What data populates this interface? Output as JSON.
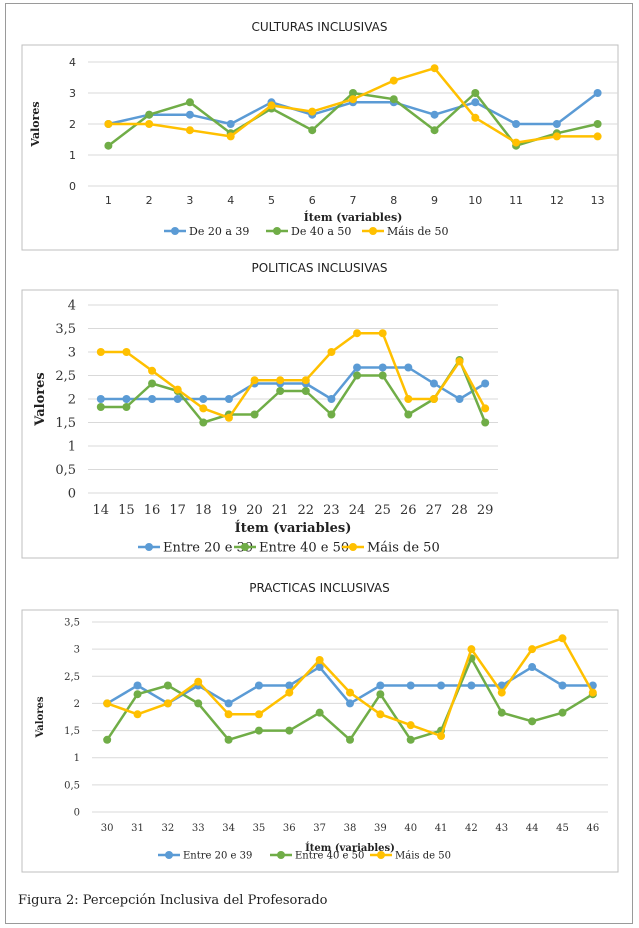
{
  "caption": "Figura 2: Percepción Inclusiva del Profesorado",
  "chart_data": [
    {
      "type": "line",
      "title": "CULTURAS INCLUSIVAS",
      "xlabel": "Ítem (variables)",
      "ylabel": "Valores",
      "x": [
        "1",
        "2",
        "3",
        "4",
        "5",
        "6",
        "7",
        "8",
        "9",
        "10",
        "11",
        "12",
        "13"
      ],
      "ylim": [
        0,
        4
      ],
      "yticks": [
        "0",
        "1",
        "2",
        "3",
        "4"
      ],
      "grid": true,
      "legend": "bottom",
      "series": [
        {
          "name": "De 20 a 39",
          "color": "#5b9bd5",
          "values": [
            2.0,
            2.3,
            2.3,
            2.0,
            2.7,
            2.3,
            2.7,
            2.7,
            2.3,
            2.7,
            2.0,
            2.0,
            3.0
          ]
        },
        {
          "name": "De 40 a 50",
          "color": "#70ad47",
          "values": [
            1.3,
            2.3,
            2.7,
            1.7,
            2.5,
            1.8,
            3.0,
            2.8,
            1.8,
            3.0,
            1.3,
            1.7,
            2.0
          ]
        },
        {
          "name": "Máis de 50",
          "color": "#ffc000",
          "values": [
            2.0,
            2.0,
            1.8,
            1.6,
            2.6,
            2.4,
            2.8,
            3.4,
            3.8,
            2.2,
            1.4,
            1.6,
            1.6
          ]
        }
      ]
    },
    {
      "type": "line",
      "title": "POLITICAS INCLUSIVAS",
      "xlabel": "Ítem (variables)",
      "ylabel": "Valores",
      "x": [
        "14",
        "15",
        "16",
        "17",
        "18",
        "19",
        "20",
        "21",
        "22",
        "23",
        "24",
        "25",
        "26",
        "27",
        "28",
        "29"
      ],
      "ylim": [
        0,
        4
      ],
      "yticks": [
        "0",
        "0,5",
        "1",
        "1,5",
        "2",
        "2,5",
        "3",
        "3,5",
        "4"
      ],
      "grid": true,
      "legend": "bottom",
      "series": [
        {
          "name": "Entre 20 e 39",
          "color": "#5b9bd5",
          "values": [
            2.0,
            2.0,
            2.0,
            2.0,
            2.0,
            2.0,
            2.33,
            2.33,
            2.33,
            2.0,
            2.67,
            2.67,
            2.67,
            2.33,
            2.0,
            2.33
          ]
        },
        {
          "name": "Entre 40 e 50",
          "color": "#70ad47",
          "values": [
            1.83,
            1.83,
            2.33,
            2.17,
            1.5,
            1.67,
            1.67,
            2.17,
            2.17,
            1.67,
            2.5,
            2.5,
            1.67,
            2.0,
            2.83,
            1.5
          ]
        },
        {
          "name": "Máis de 50",
          "color": "#ffc000",
          "values": [
            3.0,
            3.0,
            2.6,
            2.2,
            1.8,
            1.6,
            2.4,
            2.4,
            2.4,
            3.0,
            3.4,
            3.4,
            2.0,
            2.0,
            2.8,
            1.8
          ]
        }
      ]
    },
    {
      "type": "line",
      "title": "PRACTICAS INCLUSIVAS",
      "xlabel": "Ítem (variables)",
      "ylabel": "Valores",
      "x": [
        "30",
        "31",
        "32",
        "33",
        "34",
        "35",
        "36",
        "37",
        "38",
        "39",
        "40",
        "41",
        "42",
        "43",
        "44",
        "45",
        "46"
      ],
      "ylim": [
        0,
        3.5
      ],
      "yticks": [
        "0",
        "0,5",
        "1",
        "1,5",
        "2",
        "2,5",
        "3",
        "3,5"
      ],
      "grid": true,
      "legend": "bottom",
      "series": [
        {
          "name": "Entre 20 e 39",
          "color": "#5b9bd5",
          "values": [
            2.0,
            2.33,
            2.0,
            2.33,
            2.0,
            2.33,
            2.33,
            2.67,
            2.0,
            2.33,
            2.33,
            2.33,
            2.33,
            2.33,
            2.67,
            2.33,
            2.33
          ]
        },
        {
          "name": "Entre 40 e 50",
          "color": "#70ad47",
          "values": [
            1.33,
            2.17,
            2.33,
            2.0,
            1.33,
            1.5,
            1.5,
            1.83,
            1.33,
            2.17,
            1.33,
            1.5,
            2.83,
            1.83,
            1.67,
            1.83,
            2.17
          ]
        },
        {
          "name": "Máis de 50",
          "color": "#ffc000",
          "values": [
            2.0,
            1.8,
            2.0,
            2.4,
            1.8,
            1.8,
            2.2,
            2.8,
            2.2,
            1.8,
            1.6,
            1.4,
            3.0,
            2.2,
            3.0,
            3.2,
            2.2
          ]
        }
      ]
    }
  ]
}
